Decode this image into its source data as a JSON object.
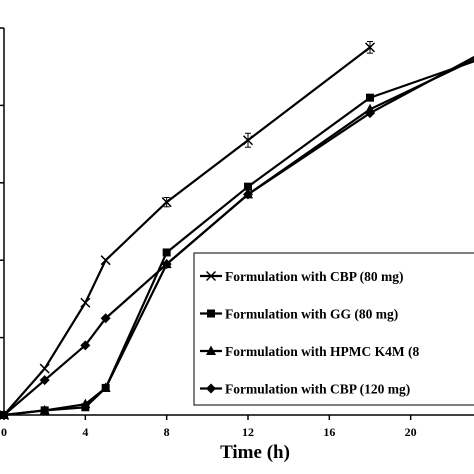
{
  "chart_data": {
    "type": "line",
    "title": "",
    "xlabel": "Time (h)",
    "ylabel": "",
    "xlim": [
      0,
      24
    ],
    "ylim": [
      0,
      100
    ],
    "x_ticks": [
      0,
      4,
      8,
      12,
      16,
      20
    ],
    "x_tick_labels": [
      "0",
      "4",
      "8",
      "12",
      "16",
      "20"
    ],
    "y_ticks": [
      0,
      20,
      40,
      60,
      80,
      100
    ],
    "grid": false,
    "legend_position": "right",
    "series": [
      {
        "name": "Formulation with CBP (80 mg)",
        "marker": "x",
        "x": [
          0,
          2,
          4,
          5,
          8,
          12,
          18
        ],
        "y": [
          0,
          12,
          29,
          40,
          55,
          71,
          95
        ],
        "error": [
          0,
          0,
          0,
          0,
          1.2,
          1.8,
          1.5
        ]
      },
      {
        "name": "Formulation with GG (80 mg)",
        "marker": "square",
        "x": [
          0,
          2,
          4,
          5,
          8,
          12,
          18,
          24
        ],
        "y": [
          0,
          1.2,
          2,
          7,
          42,
          59,
          82,
          93
        ]
      },
      {
        "name": "Formulation with HPMC K4M (8",
        "marker": "triangle",
        "x": [
          0,
          2,
          4,
          5,
          8,
          12,
          18,
          24
        ],
        "y": [
          0,
          1.2,
          2.8,
          7,
          39,
          57,
          79,
          94
        ]
      },
      {
        "name": "Formulation with CBP (120 mg)",
        "marker": "diamond",
        "x": [
          0,
          2,
          4,
          5,
          8,
          12,
          18,
          24
        ],
        "y": [
          0,
          9,
          18,
          25,
          39,
          57,
          78,
          95
        ]
      }
    ]
  }
}
